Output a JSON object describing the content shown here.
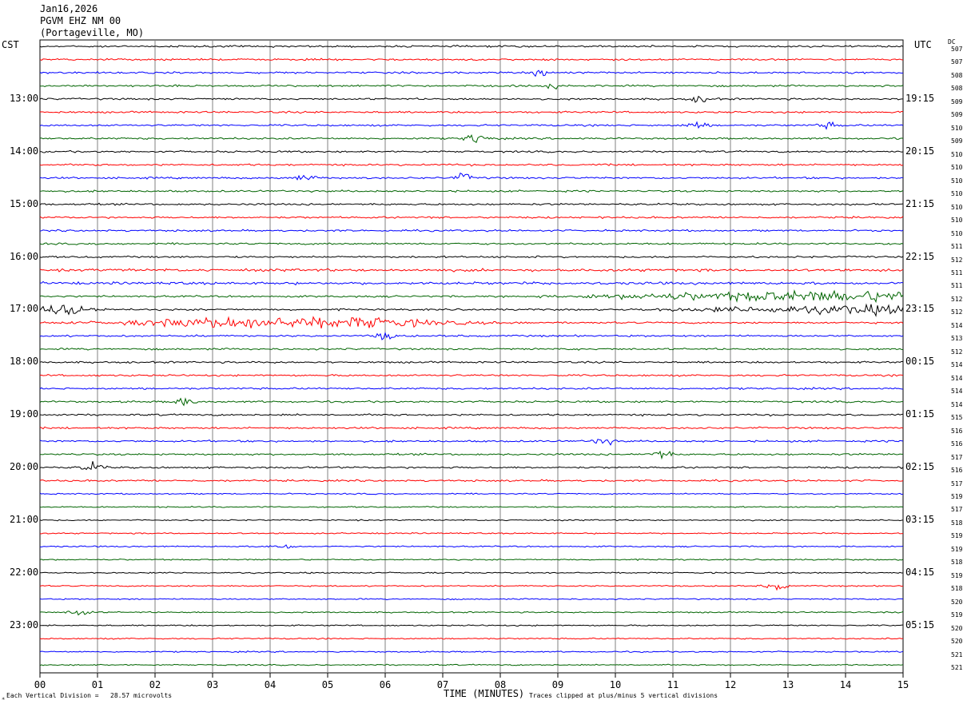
{
  "header": {
    "date": "Jan16,2026",
    "station": "PGVM EHZ NM 00",
    "location": "(Portageville, MO)"
  },
  "left_axis_label": "CST",
  "right_axis_label": "UTC",
  "dc_label": "DC",
  "footer": {
    "scale_text": "Each Vertical Division =   28.57 microvolts",
    "xlabel": "TIME (MINUTES)",
    "clip_text": "Traces clipped at plus/minus 5 vertical divisions"
  },
  "colors": {
    "trace_cycle": [
      "#000000",
      "#ff0000",
      "#0000ff",
      "#006400"
    ],
    "grid": "#808080",
    "frame": "#000000"
  },
  "chart_data": {
    "type": "line",
    "title": "",
    "xlabel": "TIME (MINUTES)",
    "ylabel": "",
    "xlim": [
      0,
      15
    ],
    "x_tick_labels": [
      "00",
      "01",
      "02",
      "03",
      "04",
      "05",
      "06",
      "07",
      "08",
      "09",
      "10",
      "11",
      "12",
      "13",
      "14",
      "15"
    ],
    "trace_count": 48,
    "left_time_labels": [
      "13:00",
      "14:00",
      "15:00",
      "16:00",
      "17:00",
      "18:00",
      "19:00",
      "20:00",
      "21:00",
      "22:00",
      "23:00"
    ],
    "right_time_labels": [
      "19:15",
      "20:15",
      "21:15",
      "22:15",
      "23:15",
      "00:15",
      "01:15",
      "02:15",
      "03:15",
      "04:15",
      "05:15"
    ],
    "dc_values": [
      "507",
      "507",
      "508",
      "508",
      "509",
      "509",
      "510",
      "509",
      "510",
      "510",
      "510",
      "510",
      "510",
      "510",
      "510",
      "511",
      "512",
      "511",
      "511",
      "512",
      "512",
      "514",
      "513",
      "512",
      "514",
      "514",
      "514",
      "514",
      "515",
      "516",
      "516",
      "517",
      "516",
      "517",
      "519",
      "517",
      "518",
      "519",
      "519",
      "518",
      "519",
      "518",
      "520",
      "519",
      "520",
      "520",
      "521",
      "521"
    ],
    "activity_events": [
      {
        "trace": 2,
        "x_min": 8.7,
        "amp": 3.0
      },
      {
        "trace": 3,
        "x_min": 8.9,
        "amp": 2.5
      },
      {
        "trace": 4,
        "x_min": 11.5,
        "amp": 3.5
      },
      {
        "trace": 6,
        "x_min": 11.4,
        "amp": 4.0
      },
      {
        "trace": 6,
        "x_min": 13.7,
        "amp": 3.0
      },
      {
        "trace": 7,
        "x_min": 7.6,
        "amp": 8.0
      },
      {
        "trace": 10,
        "x_min": 4.6,
        "amp": 3.5
      },
      {
        "trace": 10,
        "x_min": 7.4,
        "amp": 4.5
      },
      {
        "trace": 19,
        "x_min": 13.0,
        "amp": 9.0
      },
      {
        "trace": 20,
        "x_min": 0.5,
        "amp": 9.0
      },
      {
        "trace": 21,
        "x_min": 4.2,
        "amp": 11.0
      },
      {
        "trace": 22,
        "x_min": 6.0,
        "amp": 4.0
      },
      {
        "trace": 27,
        "x_min": 2.5,
        "amp": 4.0
      },
      {
        "trace": 30,
        "x_min": 9.8,
        "amp": 4.0
      },
      {
        "trace": 31,
        "x_min": 10.8,
        "amp": 5.0
      },
      {
        "trace": 32,
        "x_min": 0.9,
        "amp": 5.0
      },
      {
        "trace": 38,
        "x_min": 4.2,
        "amp": 4.0
      },
      {
        "trace": 41,
        "x_min": 12.8,
        "amp": 4.0
      },
      {
        "trace": 43,
        "x_min": 0.7,
        "amp": 4.0
      }
    ]
  }
}
